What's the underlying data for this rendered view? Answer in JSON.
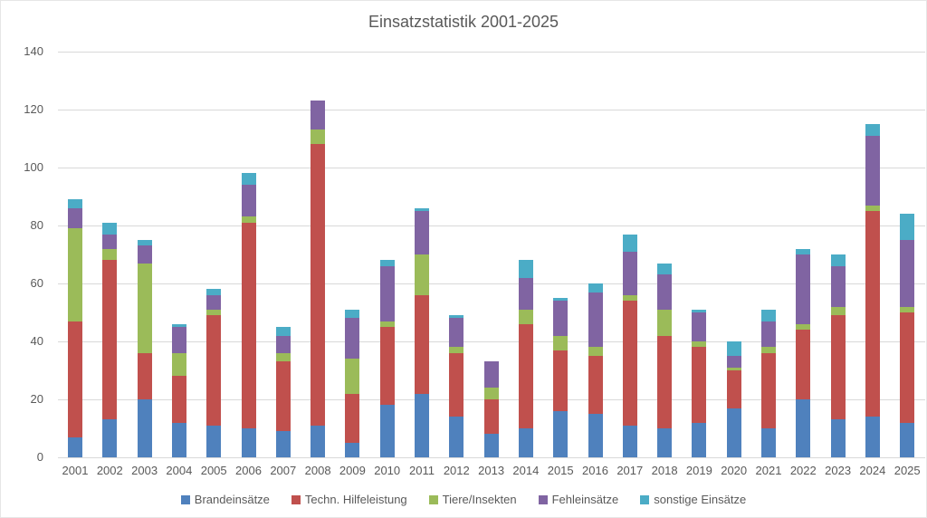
{
  "chart_data": {
    "type": "bar",
    "stacked": true,
    "title": "Einsatzstatistik 2001-2025",
    "xlabel": "",
    "ylabel": "",
    "ylim": [
      0,
      140
    ],
    "ytick_step": 20,
    "grid": true,
    "legend_position": "bottom",
    "text_color": "#595959",
    "gridline_color": "#d9d9d9",
    "categories": [
      "2001",
      "2002",
      "2003",
      "2004",
      "2005",
      "2006",
      "2007",
      "2008",
      "2009",
      "2010",
      "2011",
      "2012",
      "2013",
      "2014",
      "2015",
      "2016",
      "2017",
      "2018",
      "2019",
      "2020",
      "2021",
      "2022",
      "2023",
      "2024",
      "2025"
    ],
    "series": [
      {
        "name": "Brandeinsätze",
        "color": "#4F81BD",
        "values": [
          7,
          13,
          20,
          12,
          11,
          10,
          9,
          11,
          5,
          18,
          22,
          14,
          8,
          10,
          16,
          15,
          11,
          10,
          12,
          17,
          10,
          20,
          13,
          14,
          12
        ]
      },
      {
        "name": "Techn. Hilfeleistung",
        "color": "#C0504D",
        "values": [
          40,
          55,
          16,
          16,
          38,
          71,
          24,
          97,
          17,
          27,
          34,
          22,
          12,
          36,
          21,
          20,
          43,
          32,
          26,
          13,
          26,
          24,
          36,
          71,
          38
        ]
      },
      {
        "name": "Tiere/Insekten",
        "color": "#9BBB59",
        "values": [
          32,
          4,
          31,
          8,
          2,
          2,
          3,
          5,
          12,
          2,
          14,
          2,
          4,
          5,
          5,
          3,
          2,
          9,
          2,
          1,
          2,
          2,
          3,
          2,
          2
        ]
      },
      {
        "name": "Fehleinsätze",
        "color": "#8064A2",
        "values": [
          7,
          5,
          6,
          9,
          5,
          11,
          6,
          10,
          14,
          19,
          15,
          10,
          9,
          11,
          12,
          19,
          15,
          12,
          10,
          4,
          9,
          24,
          14,
          24,
          23
        ]
      },
      {
        "name": "sonstige Einsätze",
        "color": "#4BACC6",
        "values": [
          3,
          4,
          2,
          1,
          2,
          4,
          3,
          0,
          3,
          2,
          1,
          1,
          0,
          6,
          1,
          3,
          6,
          4,
          1,
          5,
          4,
          2,
          4,
          4,
          9
        ]
      }
    ]
  }
}
